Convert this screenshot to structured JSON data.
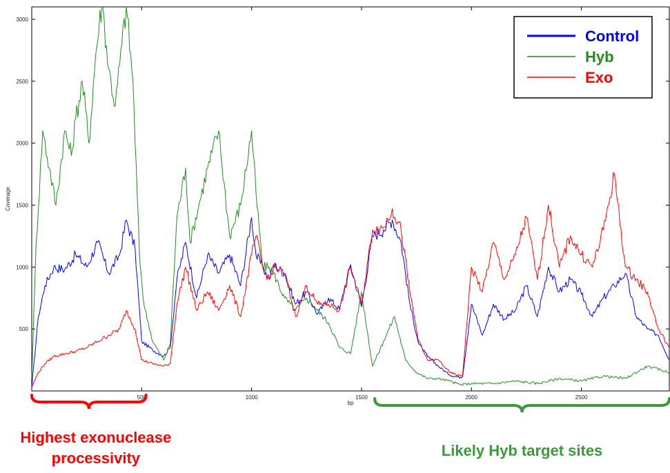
{
  "chart_data": {
    "type": "line",
    "title": "",
    "xlabel": "bp",
    "ylabel": "Coverage",
    "xlim": [
      0,
      2900
    ],
    "ylim": [
      0,
      3100
    ],
    "xticks": [
      500,
      1000,
      1500,
      2000,
      2500
    ],
    "yticks": [
      500,
      1000,
      1500,
      2000,
      2500,
      3000
    ],
    "xtick_labels": [
      "500",
      "1000",
      "1500",
      "2000",
      "2500"
    ],
    "ytick_labels": [
      "500",
      "1000",
      "1500",
      "2000",
      "2500",
      "3000"
    ],
    "grid": false,
    "legend_position": "top-right",
    "series": [
      {
        "name": "Control",
        "color": "#0000ff",
        "x": [
          0,
          30,
          60,
          100,
          150,
          200,
          250,
          300,
          350,
          400,
          430,
          470,
          500,
          550,
          600,
          630,
          660,
          700,
          750,
          800,
          850,
          900,
          950,
          1000,
          1020,
          1050,
          1080,
          1100,
          1150,
          1200,
          1250,
          1300,
          1350,
          1400,
          1450,
          1500,
          1550,
          1600,
          1640,
          1680,
          1720,
          1760,
          1800,
          1850,
          1900,
          1950,
          1960,
          2000,
          2050,
          2100,
          2150,
          2200,
          2250,
          2300,
          2350,
          2400,
          2450,
          2500,
          2550,
          2600,
          2650,
          2700,
          2750,
          2800,
          2850,
          2900
        ],
        "y": [
          30,
          600,
          850,
          1000,
          980,
          1100,
          1000,
          1200,
          950,
          1100,
          1380,
          1150,
          400,
          330,
          280,
          350,
          900,
          1200,
          750,
          1100,
          950,
          1100,
          850,
          1400,
          1100,
          1000,
          900,
          1020,
          950,
          700,
          800,
          620,
          750,
          660,
          1020,
          680,
          1250,
          1300,
          1380,
          1200,
          700,
          380,
          280,
          200,
          130,
          110,
          120,
          700,
          450,
          700,
          580,
          650,
          850,
          600,
          1000,
          800,
          900,
          780,
          600,
          750,
          850,
          950,
          600,
          500,
          450,
          250
        ]
      },
      {
        "name": "Hyb",
        "color": "#228b22",
        "x": [
          0,
          20,
          50,
          80,
          110,
          150,
          180,
          200,
          230,
          260,
          290,
          320,
          350,
          380,
          410,
          430,
          460,
          490,
          510,
          550,
          600,
          630,
          660,
          700,
          720,
          760,
          800,
          850,
          900,
          950,
          1000,
          1020,
          1050,
          1080,
          1100,
          1150,
          1200,
          1250,
          1300,
          1350,
          1400,
          1450,
          1500,
          1550,
          1600,
          1650,
          1700,
          1750,
          1800,
          1850,
          1900,
          1950,
          2000,
          2100,
          2200,
          2300,
          2400,
          2500,
          2600,
          2700,
          2800,
          2900
        ],
        "y": [
          100,
          1200,
          2100,
          1800,
          1500,
          2100,
          1900,
          2200,
          2500,
          2000,
          2700,
          3150,
          2600,
          2300,
          2800,
          3100,
          2500,
          1100,
          700,
          400,
          250,
          380,
          1400,
          1800,
          1200,
          1500,
          1800,
          2100,
          1250,
          1500,
          2100,
          1600,
          1000,
          1000,
          950,
          750,
          650,
          750,
          650,
          550,
          350,
          300,
          800,
          200,
          400,
          600,
          250,
          150,
          100,
          100,
          80,
          50,
          60,
          60,
          80,
          60,
          100,
          80,
          120,
          100,
          200,
          150
        ]
      },
      {
        "name": "Exo",
        "color": "#ff0000",
        "x": [
          0,
          30,
          60,
          100,
          150,
          200,
          250,
          300,
          350,
          400,
          430,
          470,
          500,
          550,
          600,
          630,
          660,
          700,
          750,
          800,
          850,
          900,
          950,
          1000,
          1020,
          1050,
          1080,
          1100,
          1150,
          1200,
          1250,
          1300,
          1350,
          1400,
          1450,
          1500,
          1550,
          1600,
          1640,
          1680,
          1720,
          1760,
          1800,
          1850,
          1900,
          1950,
          1960,
          2000,
          2050,
          2100,
          2150,
          2200,
          2250,
          2300,
          2350,
          2400,
          2450,
          2500,
          2550,
          2600,
          2650,
          2700,
          2750,
          2800,
          2850,
          2900
        ],
        "y": [
          30,
          150,
          220,
          280,
          300,
          320,
          350,
          400,
          450,
          500,
          650,
          500,
          250,
          220,
          200,
          220,
          700,
          1000,
          650,
          800,
          650,
          850,
          600,
          1100,
          1250,
          1000,
          900,
          1000,
          950,
          600,
          850,
          700,
          700,
          650,
          1000,
          700,
          1300,
          1320,
          1470,
          1300,
          800,
          400,
          250,
          250,
          150,
          120,
          130,
          1000,
          800,
          1200,
          900,
          1100,
          1400,
          900,
          1500,
          1000,
          1250,
          1100,
          1000,
          1300,
          1750,
          1000,
          900,
          800,
          500,
          350
        ]
      }
    ],
    "annotations": [
      {
        "text": "Highest  exonuclease processivity",
        "lines": [
          "Highest  exonuclease",
          "processivity"
        ],
        "color": "#ff0000",
        "x_range": [
          0,
          520
        ]
      },
      {
        "text": "Likely Hyb target sites",
        "lines": [
          "Likely Hyb target sites"
        ],
        "color": "#3a9a3a",
        "x_range": [
          1560,
          2900
        ]
      }
    ]
  }
}
